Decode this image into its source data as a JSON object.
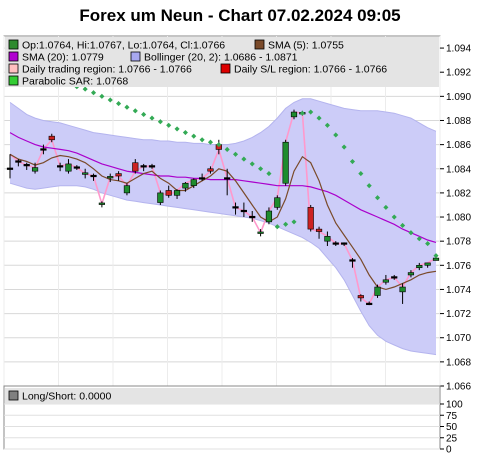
{
  "title": "Forex um Neun - Chart 07.02.2024 09:05",
  "legend": [
    {
      "key": "ohlc",
      "text": "Op:1.0764, Hi:1.0767, Lo:1.0764, Cl:1.0766",
      "color": "#2e8b2e"
    },
    {
      "key": "sma5",
      "text": "SMA (5): 1.0755",
      "color": "#7a4a2a"
    },
    {
      "key": "sma20",
      "text": "SMA (20): 1.0779",
      "color": "#b000d0"
    },
    {
      "key": "boll",
      "text": "Bollinger (20, 2): 1.0686 - 1.0871",
      "color": "#a8a8f0"
    },
    {
      "key": "daily_region",
      "text": "Daily trading region: 1.0766 - 1.0766",
      "color": "#ffc0c0"
    },
    {
      "key": "sl_region",
      "text": "Daily S/L region: 1.0766 - 1.0766",
      "color": "#dd0000"
    },
    {
      "key": "sar",
      "text": "Parabolic SAR: 1.0768",
      "color": "#33cc33"
    }
  ],
  "lower_panel": {
    "label": "Long/Short: 0.0000",
    "value": 0.0,
    "yticks": [
      "100",
      "75",
      "50",
      "25",
      "0"
    ]
  },
  "colors": {
    "up_candle": "#1e8c2e",
    "down_candle": "#cc2222",
    "doji": "#000000",
    "bollinger_fill": "#ccccf8",
    "sar": "#33aa55",
    "pink_line": "#ff99cc",
    "sma5": "#7a4a2a",
    "sma20": "#aa00cc"
  },
  "chart_data": {
    "type": "candlestick",
    "title": "Forex um Neun - Chart 07.02.2024 09:05",
    "ylim": [
      1.066,
      1.095
    ],
    "yticks": [
      1.066,
      1.068,
      1.07,
      1.072,
      1.074,
      1.076,
      1.078,
      1.08,
      1.082,
      1.084,
      1.086,
      1.088,
      1.09,
      1.092,
      1.094
    ],
    "grid": true,
    "candles": [
      {
        "o": 1.084,
        "h": 1.0852,
        "l": 1.0832,
        "c": 1.084
      },
      {
        "o": 1.0846,
        "h": 1.0848,
        "l": 1.0842,
        "c": 1.0846
      },
      {
        "o": 1.0843,
        "h": 1.0845,
        "l": 1.0839,
        "c": 1.0843
      },
      {
        "o": 1.0838,
        "h": 1.0845,
        "l": 1.0836,
        "c": 1.0841
      },
      {
        "o": 1.0856,
        "h": 1.086,
        "l": 1.0852,
        "c": 1.0856
      },
      {
        "o": 1.0867,
        "h": 1.0869,
        "l": 1.0862,
        "c": 1.0864
      },
      {
        "o": 1.0842,
        "h": 1.0845,
        "l": 1.0838,
        "c": 1.0842
      },
      {
        "o": 1.0838,
        "h": 1.0848,
        "l": 1.0836,
        "c": 1.0844
      },
      {
        "o": 1.0841,
        "h": 1.0843,
        "l": 1.0839,
        "c": 1.0841
      },
      {
        "o": 1.0835,
        "h": 1.084,
        "l": 1.0832,
        "c": 1.0836
      },
      {
        "o": 1.0834,
        "h": 1.0836,
        "l": 1.083,
        "c": 1.0834
      },
      {
        "o": 1.081,
        "h": 1.0813,
        "l": 1.0808,
        "c": 1.0811
      },
      {
        "o": 1.0832,
        "h": 1.0836,
        "l": 1.0829,
        "c": 1.0833
      },
      {
        "o": 1.0836,
        "h": 1.0838,
        "l": 1.083,
        "c": 1.0834
      },
      {
        "o": 1.082,
        "h": 1.0828,
        "l": 1.0818,
        "c": 1.0826
      },
      {
        "o": 1.0845,
        "h": 1.0848,
        "l": 1.0836,
        "c": 1.0838
      },
      {
        "o": 1.0842,
        "h": 1.0844,
        "l": 1.0838,
        "c": 1.0842
      },
      {
        "o": 1.0842,
        "h": 1.0844,
        "l": 1.084,
        "c": 1.0842
      },
      {
        "o": 1.0812,
        "h": 1.0822,
        "l": 1.081,
        "c": 1.082
      },
      {
        "o": 1.0822,
        "h": 1.0826,
        "l": 1.0816,
        "c": 1.0818
      },
      {
        "o": 1.0818,
        "h": 1.0823,
        "l": 1.0815,
        "c": 1.0822
      },
      {
        "o": 1.0824,
        "h": 1.0829,
        "l": 1.0821,
        "c": 1.0828
      },
      {
        "o": 1.0826,
        "h": 1.0832,
        "l": 1.0824,
        "c": 1.0831
      },
      {
        "o": 1.0832,
        "h": 1.0836,
        "l": 1.083,
        "c": 1.0832
      },
      {
        "o": 1.084,
        "h": 1.0842,
        "l": 1.0836,
        "c": 1.0838
      },
      {
        "o": 1.086,
        "h": 1.0864,
        "l": 1.0852,
        "c": 1.0856
      },
      {
        "o": 1.0832,
        "h": 1.084,
        "l": 1.0818,
        "c": 1.0832
      },
      {
        "o": 1.0808,
        "h": 1.0812,
        "l": 1.0802,
        "c": 1.0808
      },
      {
        "o": 1.0805,
        "h": 1.0812,
        "l": 1.08,
        "c": 1.0805
      },
      {
        "o": 1.08,
        "h": 1.0805,
        "l": 1.0796,
        "c": 1.08
      },
      {
        "o": 1.0786,
        "h": 1.079,
        "l": 1.0784,
        "c": 1.0787
      },
      {
        "o": 1.0796,
        "h": 1.0808,
        "l": 1.0794,
        "c": 1.0805
      },
      {
        "o": 1.0808,
        "h": 1.0818,
        "l": 1.0806,
        "c": 1.0816
      },
      {
        "o": 1.0828,
        "h": 1.0864,
        "l": 1.0826,
        "c": 1.0862
      },
      {
        "o": 1.0883,
        "h": 1.0889,
        "l": 1.0881,
        "c": 1.0887
      },
      {
        "o": 1.0886,
        "h": 1.0888,
        "l": 1.0884,
        "c": 1.0886
      },
      {
        "o": 1.0808,
        "h": 1.081,
        "l": 1.0788,
        "c": 1.079
      },
      {
        "o": 1.079,
        "h": 1.0792,
        "l": 1.0782,
        "c": 1.0788
      },
      {
        "o": 1.078,
        "h": 1.0788,
        "l": 1.0776,
        "c": 1.0784
      },
      {
        "o": 1.0778,
        "h": 1.078,
        "l": 1.0776,
        "c": 1.0778
      },
      {
        "o": 1.0778,
        "h": 1.0779,
        "l": 1.0776,
        "c": 1.0778
      },
      {
        "o": 1.0764,
        "h": 1.0766,
        "l": 1.0758,
        "c": 1.0764
      },
      {
        "o": 1.0735,
        "h": 1.0736,
        "l": 1.073,
        "c": 1.0733
      },
      {
        "o": 1.0728,
        "h": 1.073,
        "l": 1.0727,
        "c": 1.0728
      },
      {
        "o": 1.0735,
        "h": 1.0744,
        "l": 1.0733,
        "c": 1.0742
      },
      {
        "o": 1.0746,
        "h": 1.0752,
        "l": 1.0744,
        "c": 1.0748
      },
      {
        "o": 1.075,
        "h": 1.0752,
        "l": 1.0748,
        "c": 1.075
      },
      {
        "o": 1.0738,
        "h": 1.0745,
        "l": 1.0728,
        "c": 1.0742
      },
      {
        "o": 1.0752,
        "h": 1.0756,
        "l": 1.075,
        "c": 1.0754
      },
      {
        "o": 1.0758,
        "h": 1.0762,
        "l": 1.0756,
        "c": 1.076
      },
      {
        "o": 1.076,
        "h": 1.0762,
        "l": 1.0758,
        "c": 1.0762
      },
      {
        "o": 1.0764,
        "h": 1.0767,
        "l": 1.0764,
        "c": 1.0766
      }
    ],
    "sma5": [
      1.0852,
      1.0848,
      1.0846,
      1.0843,
      1.0845,
      1.0849,
      1.0851,
      1.085,
      1.0848,
      1.0845,
      1.084,
      1.0834,
      1.0831,
      1.083,
      1.0828,
      1.0832,
      1.0836,
      1.0838,
      1.0832,
      1.0828,
      1.0822,
      1.0822,
      1.0826,
      1.083,
      1.0834,
      1.084,
      1.0838,
      1.083,
      1.082,
      1.081,
      1.08,
      1.0796,
      1.08,
      1.0815,
      1.0838,
      1.085,
      1.0845,
      1.083,
      1.081,
      1.0795,
      1.0785,
      1.0775,
      1.0765,
      1.0752,
      1.0742,
      1.074,
      1.0742,
      1.0745,
      1.0748,
      1.0752,
      1.0754,
      1.0755
    ],
    "sma20": [
      1.087,
      1.0866,
      1.0863,
      1.086,
      1.0858,
      1.0857,
      1.0856,
      1.0855,
      1.0853,
      1.085,
      1.0847,
      1.0844,
      1.0842,
      1.084,
      1.0838,
      1.0837,
      1.0836,
      1.0835,
      1.0834,
      1.0834,
      1.0833,
      1.0833,
      1.0832,
      1.0832,
      1.0831,
      1.0831,
      1.0831,
      1.0831,
      1.083,
      1.0829,
      1.0828,
      1.0827,
      1.0826,
      1.0826,
      1.0826,
      1.0826,
      1.0825,
      1.0823,
      1.0821,
      1.0818,
      1.0814,
      1.081,
      1.0806,
      1.0803,
      1.08,
      1.0797,
      1.0794,
      1.079,
      1.0787,
      1.0784,
      1.0781,
      1.0779
    ],
    "bollinger_upper": [
      1.0895,
      1.089,
      1.0885,
      1.0882,
      1.088,
      1.0879,
      1.0878,
      1.0876,
      1.0874,
      1.0872,
      1.087,
      1.0869,
      1.0868,
      1.0867,
      1.0866,
      1.0865,
      1.0864,
      1.0864,
      1.0863,
      1.0863,
      1.0862,
      1.0862,
      1.0861,
      1.0861,
      1.086,
      1.086,
      1.086,
      1.0861,
      1.0863,
      1.0866,
      1.087,
      1.0875,
      1.0882,
      1.089,
      1.0895,
      1.0898,
      1.0898,
      1.0896,
      1.0894,
      1.0892,
      1.089,
      1.0889,
      1.0888,
      1.0888,
      1.0888,
      1.0887,
      1.0886,
      1.0884,
      1.0882,
      1.0878,
      1.0874,
      1.0871
    ],
    "bollinger_lower": [
      1.0828,
      1.0826,
      1.0824,
      1.0823,
      1.0824,
      1.0825,
      1.0826,
      1.0826,
      1.0826,
      1.0825,
      1.0823,
      1.082,
      1.0818,
      1.0816,
      1.0814,
      1.0813,
      1.0812,
      1.0811,
      1.081,
      1.0809,
      1.0808,
      1.0807,
      1.0806,
      1.0805,
      1.0804,
      1.0803,
      1.0802,
      1.0801,
      1.08,
      1.0799,
      1.0797,
      1.0795,
      1.0792,
      1.0789,
      1.0786,
      1.0783,
      1.0779,
      1.0774,
      1.0766,
      1.0758,
      1.0748,
      1.0735,
      1.0722,
      1.071,
      1.0702,
      1.0697,
      1.0694,
      1.0691,
      1.0689,
      1.0688,
      1.0687,
      1.0686
    ],
    "sar": [
      1.0922,
      1.092,
      1.0918,
      1.0917,
      1.0916,
      1.0914,
      1.0912,
      1.091,
      1.0908,
      1.0906,
      1.0903,
      1.09,
      1.0897,
      1.0894,
      1.0891,
      1.0888,
      1.0885,
      1.0882,
      1.0879,
      1.0876,
      1.0873,
      1.087,
      1.0867,
      1.0864,
      1.0862,
      1.086,
      1.0856,
      1.0852,
      1.0848,
      1.0844,
      1.084,
      1.0836,
      1.0792,
      1.0794,
      1.0796,
      1.0886,
      1.0887,
      1.0882,
      1.0876,
      1.0868,
      1.0858,
      1.0846,
      1.0836,
      1.0826,
      1.0816,
      1.0808,
      1.08,
      1.0793,
      1.0787,
      1.0782,
      1.0778,
      1.0768
    ],
    "pink_line": [
      1.0852,
      1.0846,
      1.0843,
      1.0841,
      1.0856,
      1.0864,
      1.0842,
      1.0844,
      1.0841,
      1.0836,
      1.0834,
      1.0811,
      1.0833,
      1.0834,
      1.0826,
      1.0838,
      1.0842,
      1.0842,
      1.082,
      1.0818,
      1.0822,
      1.0828,
      1.0831,
      1.0832,
      1.0838,
      1.0856,
      1.0832,
      1.0808,
      1.0805,
      1.08,
      1.0787,
      1.0805,
      1.0816,
      1.0862,
      1.0887,
      1.0886,
      1.079,
      1.0788,
      1.0784,
      1.0778,
      1.0778,
      1.0764,
      1.0733,
      1.0728,
      1.0742,
      1.0748,
      1.075,
      1.0742,
      1.0754,
      1.076,
      1.0762,
      1.0766
    ]
  }
}
